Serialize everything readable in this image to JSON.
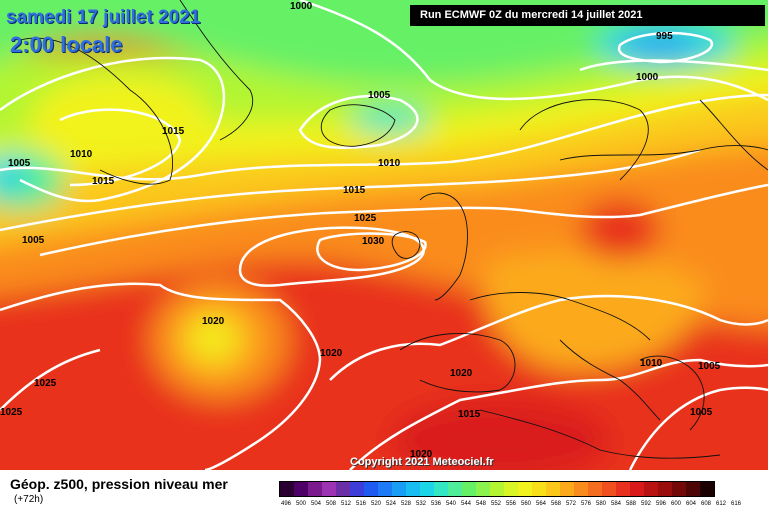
{
  "map": {
    "date_line": "samedi 17 juillet 2021",
    "time_line": "2:00 locale",
    "run_info": "Run ECMWF 0Z du mercredi 14 juillet 2021",
    "copyright": "Copyright 2021 Meteociel.fr",
    "isobar_labels": [
      "1000",
      "1005",
      "1015",
      "1010",
      "1005",
      "1015",
      "1005",
      "1010",
      "1015",
      "1025",
      "1030",
      "1020",
      "1020",
      "1025",
      "1025",
      "995",
      "1000",
      "1020",
      "1015",
      "1020",
      "1010",
      "1005",
      "1005"
    ],
    "footer_title": "Géop. z500, pression niveau mer",
    "footer_subtitle": "(+72h)"
  },
  "legend": {
    "labels": [
      "496",
      "500",
      "504",
      "508",
      "512",
      "516",
      "520",
      "524",
      "528",
      "532",
      "536",
      "540",
      "544",
      "548",
      "552",
      "556",
      "560",
      "564",
      "568",
      "572",
      "576",
      "580",
      "584",
      "588",
      "592",
      "596",
      "600",
      "604",
      "608",
      "612",
      "616"
    ],
    "colors": [
      "#2a0033",
      "#4d0066",
      "#7a1a8c",
      "#9b33b3",
      "#6b2ea6",
      "#3d3dd9",
      "#1f5bf0",
      "#1f7af7",
      "#1a9ef5",
      "#19bdf2",
      "#1ad6e6",
      "#33e6c4",
      "#4ded99",
      "#66f066",
      "#8cf24d",
      "#b3f533",
      "#d9f526",
      "#f2f21f",
      "#f7e01a",
      "#fbc71a",
      "#fcaa1c",
      "#fa8c1e",
      "#f56e1f",
      "#f0501f",
      "#e8321f",
      "#d91a1a",
      "#b81212",
      "#990d0d",
      "#730808",
      "#4d0505",
      "#1a0000"
    ]
  },
  "chart_data": {
    "type": "map",
    "field": "500 hPa geopotential height (dam) shaded, mean sea level pressure (hPa) isobars",
    "isobar_interval_hPa": 5,
    "isobar_values_visible": [
      995,
      1000,
      1005,
      1010,
      1015,
      1020,
      1025,
      1030
    ]
  }
}
